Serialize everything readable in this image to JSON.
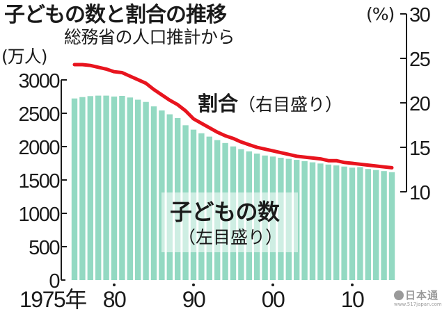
{
  "header": {
    "title": "子どもの数と割合の推移",
    "subtitle": "総務省の人口推計から"
  },
  "axes": {
    "left_unit": "(万人)",
    "right_unit": "(%)",
    "left_ticks": [
      "0",
      "500",
      "1000",
      "1500",
      "2000",
      "2500",
      "3000"
    ],
    "right_ticks": [
      "10",
      "15",
      "20",
      "25",
      "30"
    ],
    "x_ticks": [
      "1975年",
      "80",
      "90",
      "00",
      "10"
    ]
  },
  "labels": {
    "ratio_main": "割合",
    "ratio_sub": "（右目盛り）",
    "count_main": "子どもの数",
    "count_sub": "（左目盛り）"
  },
  "watermark": {
    "logo": "日本通",
    "url": "www.517japan.com"
  },
  "colors": {
    "bar": "#93d9c2",
    "line": "#e8141e",
    "axis": "#1a1a1a"
  },
  "chart_data": {
    "type": "bar+line",
    "title": "子どもの数と割合の推移",
    "subtitle": "総務省の人口推計から",
    "x": [
      1975,
      1976,
      1977,
      1978,
      1979,
      1980,
      1981,
      1982,
      1983,
      1984,
      1985,
      1986,
      1987,
      1988,
      1989,
      1990,
      1991,
      1992,
      1993,
      1994,
      1995,
      1996,
      1997,
      1998,
      1999,
      2000,
      2001,
      2002,
      2003,
      2004,
      2005,
      2006,
      2007,
      2008,
      2009,
      2010,
      2011,
      2012,
      2013,
      2014,
      2015
    ],
    "x_tick_labels": [
      "1975年",
      "80",
      "90",
      "00",
      "10"
    ],
    "series": [
      {
        "name": "子どもの数（左目盛り）",
        "type": "bar",
        "axis": "left",
        "unit": "万人",
        "values": [
          2722,
          2743,
          2757,
          2765,
          2765,
          2751,
          2760,
          2736,
          2703,
          2670,
          2603,
          2543,
          2484,
          2428,
          2320,
          2254,
          2200,
          2150,
          2098,
          2054,
          2003,
          1963,
          1929,
          1896,
          1867,
          1851,
          1833,
          1817,
          1801,
          1781,
          1765,
          1747,
          1731,
          1718,
          1701,
          1684,
          1693,
          1665,
          1649,
          1633,
          1617
        ]
      },
      {
        "name": "割合（右目盛り）",
        "type": "line",
        "axis": "right",
        "unit": "%",
        "values": [
          24.3,
          24.3,
          24.2,
          24.0,
          23.8,
          23.5,
          23.4,
          23.0,
          22.6,
          22.2,
          21.5,
          20.9,
          20.3,
          19.8,
          19.1,
          18.2,
          17.7,
          17.2,
          16.7,
          16.3,
          16.0,
          15.6,
          15.3,
          15.0,
          14.8,
          14.6,
          14.4,
          14.2,
          14.0,
          13.9,
          13.8,
          13.7,
          13.5,
          13.5,
          13.3,
          13.2,
          13.1,
          13.0,
          12.9,
          12.8,
          12.7
        ]
      }
    ],
    "ylabel_left": "(万人)",
    "ylabel_right": "(%)",
    "ylim_left": [
      0,
      3000
    ],
    "ylim_right": [
      10,
      30
    ],
    "left_ticks": [
      0,
      500,
      1000,
      1500,
      2000,
      2500,
      3000
    ],
    "right_ticks": [
      10,
      15,
      20,
      25,
      30
    ],
    "grid": false,
    "legend": "inline labels"
  }
}
